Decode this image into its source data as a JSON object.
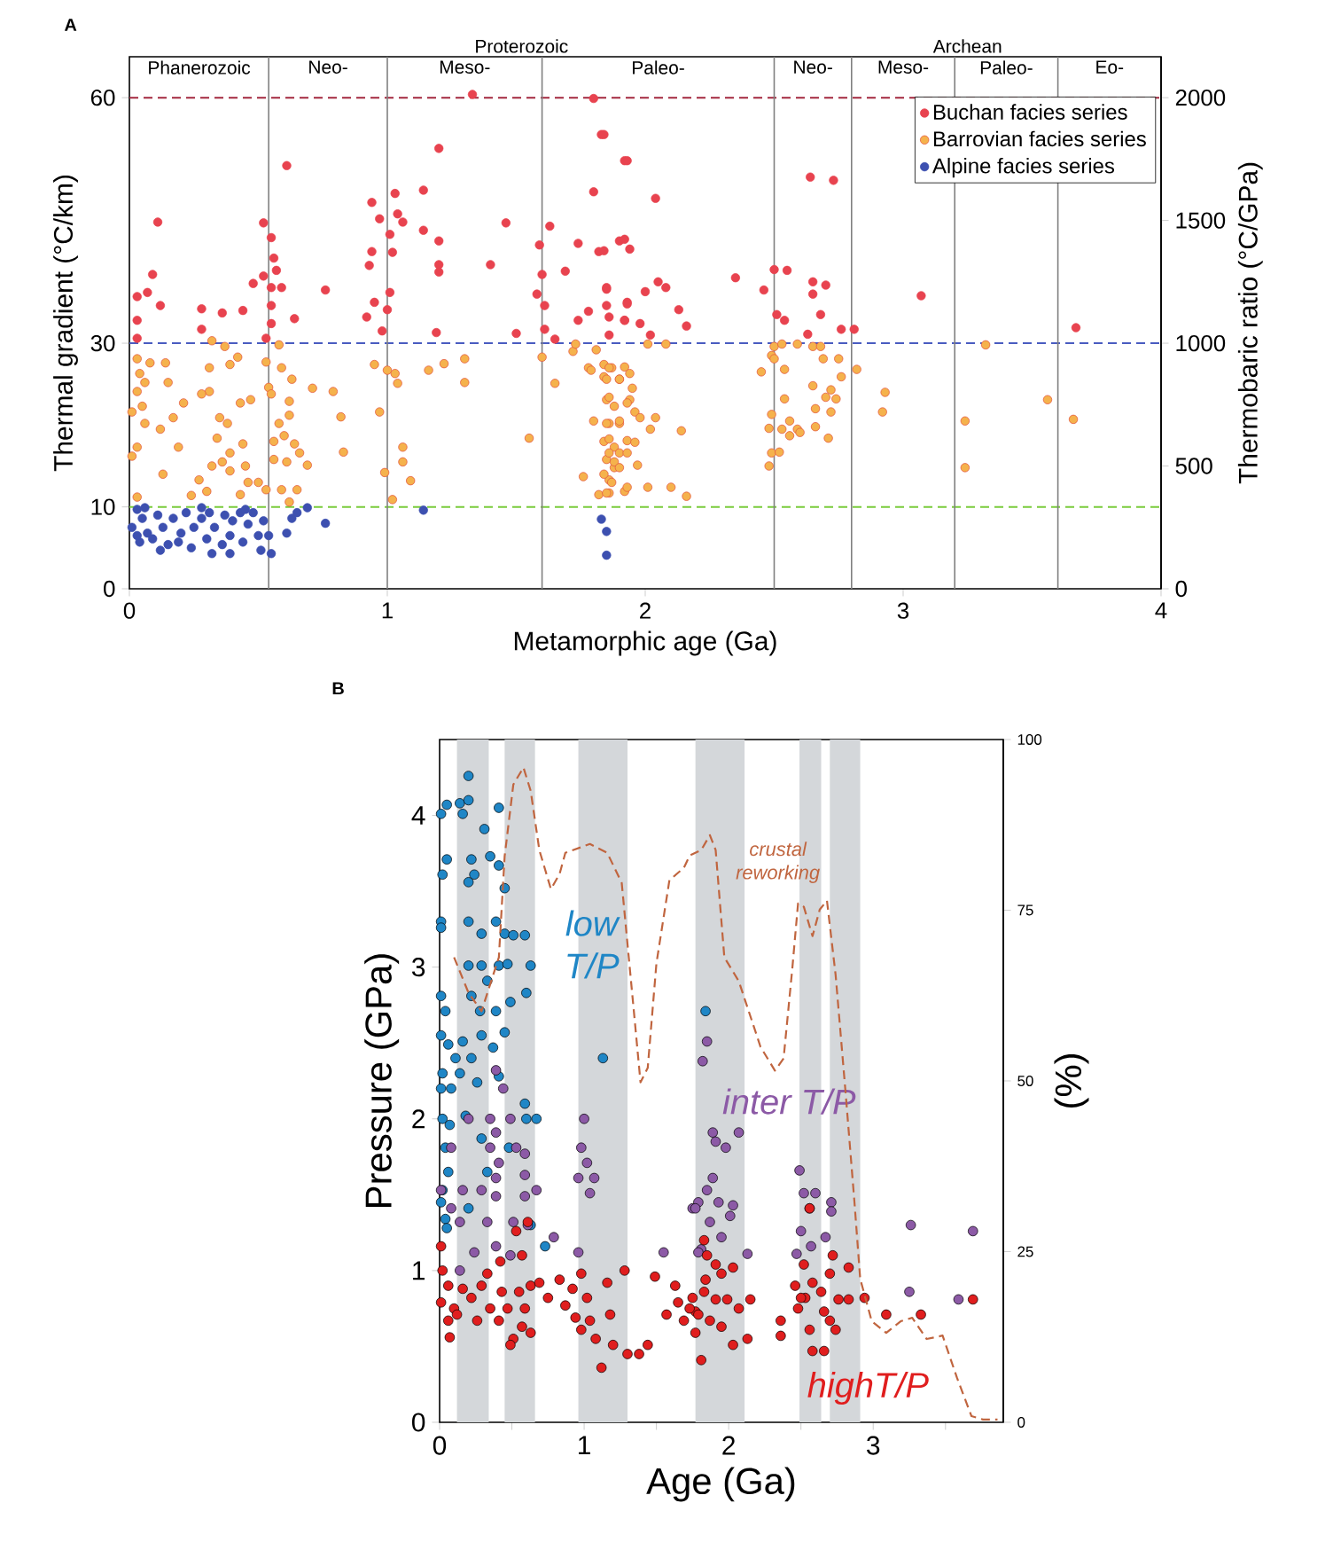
{
  "chart_data": [
    {
      "type": "scatter",
      "xlabel": "Metamorphic age (Ga)",
      "ylabel": "Thermal gradient (°C/km)",
      "y2label": "Thermobaric ratio (°C/GPa)",
      "xlim": [
        0,
        4
      ],
      "xticks": [
        0,
        1,
        2,
        3,
        4
      ],
      "ylim": [
        0,
        65
      ],
      "yticks": [
        0,
        10,
        30,
        60
      ],
      "y2lim": [
        0,
        2166.7
      ],
      "y2ticks": [
        0,
        500,
        1000,
        1500,
        2000
      ],
      "ref_lines": [
        {
          "axis": "y",
          "value": 60,
          "color": "#a3283f",
          "line_style": "dashed"
        },
        {
          "axis": "y",
          "value": 30,
          "color": "#4a5cc0",
          "line_style": "dashed"
        },
        {
          "axis": "y",
          "value": 10,
          "color": "#7acb3c",
          "line_style": "dashed"
        },
        {
          "axis": "x",
          "value": 0.54,
          "color": "#808080",
          "line_style": "solid"
        },
        {
          "axis": "x",
          "value": 1.0,
          "color": "#808080",
          "line_style": "solid"
        },
        {
          "axis": "x",
          "value": 1.6,
          "color": "#808080",
          "line_style": "solid"
        },
        {
          "axis": "x",
          "value": 2.5,
          "color": "#808080",
          "line_style": "solid"
        },
        {
          "axis": "x",
          "value": 2.8,
          "color": "#808080",
          "line_style": "solid"
        },
        {
          "axis": "x",
          "value": 3.2,
          "color": "#808080",
          "line_style": "solid"
        },
        {
          "axis": "x",
          "value": 3.6,
          "color": "#808080",
          "line_style": "solid"
        }
      ],
      "legend": "top right",
      "marker": "circle",
      "annotations": [
        "A",
        "Phanerozoic",
        "Neo-",
        "Meso-",
        "Paleo-",
        "Neo-",
        "Meso-",
        "Paleo-",
        "Eo-",
        "Proterozoic",
        "Archean"
      ],
      "series": [
        {
          "name": "Buchan facies series",
          "color": "#e8434f",
          "x": [
            0.11,
            0.03,
            0.07,
            0.09,
            0.12,
            0.03,
            0.03,
            0.28,
            0.36,
            0.44,
            0.48,
            0.28,
            0.52,
            0.55,
            0.56,
            0.57,
            0.52,
            0.55,
            0.59,
            0.55,
            0.55,
            0.53,
            0.61,
            0.64,
            0.76,
            0.94,
            0.97,
            0.94,
            0.93,
            0.92,
            0.95,
            0.98,
            1.01,
            1.03,
            1.04,
            1.06,
            1.02,
            1.01,
            1.0,
            1.14,
            1.14,
            1.2,
            1.2,
            1.2,
            1.2,
            1.19,
            1.33,
            1.4,
            1.46,
            1.5,
            1.6,
            1.59,
            1.58,
            1.61,
            1.61,
            1.63,
            1.65,
            1.69,
            1.74,
            1.8,
            1.8,
            1.83,
            1.82,
            1.85,
            1.85,
            1.74,
            1.78,
            1.9,
            1.92,
            1.93,
            1.86,
            1.92,
            1.84,
            1.93,
            2.04,
            1.92,
            1.94,
            1.84,
            1.85,
            1.93,
            2.0,
            2.05,
            2.08,
            2.13,
            2.16,
            1.86,
            1.92,
            1.98,
            2.02,
            2.35,
            2.46,
            2.5,
            2.55,
            2.64,
            2.73,
            2.65,
            2.7,
            2.65,
            2.68,
            2.51,
            2.54,
            2.63,
            2.76,
            2.81,
            3.07,
            3.67
          ],
          "values": [
            44.8,
            35.7,
            36.2,
            38.4,
            34.6,
            32.8,
            30.6,
            34.2,
            33.7,
            34.0,
            37.3,
            31.7,
            44.7,
            42.9,
            40.4,
            38.9,
            38.2,
            36.8,
            36.8,
            34.6,
            32.4,
            30.6,
            51.7,
            33.0,
            36.5,
            47.2,
            45.2,
            41.2,
            39.5,
            33.2,
            35.0,
            31.5,
            43.3,
            48.3,
            45.8,
            44.8,
            41.1,
            36.2,
            34.1,
            48.7,
            43.8,
            42.5,
            53.8,
            39.6,
            38.7,
            31.3,
            60.4,
            39.6,
            44.7,
            31.2,
            38.4,
            42.0,
            36.0,
            34.6,
            31.7,
            44.3,
            30.5,
            38.8,
            42.2,
            48.5,
            59.9,
            55.5,
            41.2,
            36.6,
            34.6,
            32.8,
            33.9,
            42.5,
            52.3,
            35.0,
            31.0,
            32.8,
            55.5,
            52.3,
            47.7,
            42.7,
            41.5,
            41.3,
            36.8,
            34.8,
            36.3,
            37.5,
            36.8,
            34.1,
            32.1,
            33.2,
            32.8,
            32.4,
            31.0,
            38.0,
            36.5,
            39.0,
            38.9,
            50.3,
            49.9,
            37.5,
            37.1,
            36.0,
            33.5,
            33.5,
            32.8,
            31.1,
            31.7,
            31.7,
            35.8,
            31.9
          ]
        },
        {
          "name": "Barrovian facies series",
          "color": "#f5b24c",
          "x": [
            0.03,
            0.08,
            0.14,
            0.04,
            0.06,
            0.03,
            0.05,
            0.01,
            0.06,
            0.03,
            0.01,
            0.15,
            0.21,
            0.12,
            0.17,
            0.19,
            0.13,
            0.03,
            0.24,
            0.27,
            0.31,
            0.31,
            0.28,
            0.37,
            0.32,
            0.39,
            0.35,
            0.34,
            0.38,
            0.43,
            0.47,
            0.42,
            0.39,
            0.36,
            0.44,
            0.45,
            0.32,
            0.39,
            0.46,
            0.5,
            0.43,
            0.3,
            0.53,
            0.58,
            0.59,
            0.54,
            0.55,
            0.63,
            0.62,
            0.62,
            0.58,
            0.6,
            0.56,
            0.64,
            0.56,
            0.61,
            0.69,
            0.66,
            0.53,
            0.59,
            0.65,
            0.62,
            0.71,
            0.79,
            0.82,
            0.83,
            0.95,
            1.0,
            1.03,
            1.04,
            0.97,
            1.06,
            1.06,
            0.99,
            1.09,
            1.02,
            1.16,
            1.22,
            1.3,
            1.3,
            1.55,
            1.6,
            1.65,
            1.72,
            1.73,
            1.78,
            1.81,
            1.79,
            1.84,
            1.87,
            1.9,
            1.85,
            1.8,
            1.86,
            1.84,
            1.9,
            1.88,
            1.85,
            1.9,
            1.76,
            1.86,
            1.88,
            1.86,
            1.92,
            1.82,
            1.94,
            1.84,
            1.86,
            1.92,
            1.94,
            1.85,
            1.9,
            1.95,
            1.86,
            1.88,
            1.93,
            1.96,
            1.98,
            1.85,
            1.9,
            2.04,
            2.02,
            2.14,
            1.86,
            1.93,
            1.96,
            1.86,
            1.93,
            1.88,
            1.97,
            1.84,
            1.9,
            1.87,
            1.93,
            1.85,
            2.01,
            2.1,
            2.16,
            2.01,
            2.08,
            2.45,
            2.49,
            2.5,
            2.53,
            2.59,
            2.65,
            2.68,
            2.69,
            2.75,
            2.5,
            2.54,
            2.82,
            2.76,
            2.54,
            2.65,
            2.72,
            2.7,
            2.74,
            2.66,
            2.72,
            2.71,
            2.49,
            2.48,
            2.53,
            2.56,
            2.59,
            2.56,
            2.6,
            2.66,
            2.49,
            2.52,
            2.48,
            2.93,
            2.92,
            3.24,
            3.24,
            3.32,
            3.56,
            3.66
          ],
          "values": [
            28.1,
            27.6,
            27.6,
            26.3,
            25.2,
            24.1,
            22.3,
            21.6,
            20.2,
            17.3,
            16.2,
            25.2,
            22.7,
            19.5,
            20.9,
            17.3,
            14.0,
            11.2,
            11.4,
            13.3,
            27.0,
            24.1,
            23.8,
            29.6,
            30.3,
            27.4,
            20.9,
            18.4,
            20.2,
            22.7,
            23.1,
            28.3,
            16.6,
            15.5,
            17.7,
            15.0,
            15.0,
            14.4,
            13.0,
            13.0,
            11.5,
            11.9,
            27.7,
            29.8,
            27.0,
            24.6,
            23.8,
            25.6,
            22.9,
            21.2,
            20.2,
            18.7,
            18.0,
            17.7,
            15.8,
            15.5,
            15.1,
            16.6,
            12.1,
            12.1,
            12.1,
            10.6,
            24.5,
            24.1,
            21.0,
            16.7,
            27.4,
            26.7,
            26.3,
            25.1,
            21.6,
            17.3,
            15.5,
            14.2,
            13.2,
            10.9,
            26.7,
            27.5,
            28.1,
            25.2,
            18.4,
            28.3,
            25.1,
            29.0,
            29.9,
            27.0,
            29.2,
            26.7,
            25.9,
            27.0,
            25.6,
            23.1,
            20.5,
            20.2,
            18.0,
            20.2,
            17.3,
            15.8,
            16.6,
            13.7,
            13.3,
            14.8,
            11.7,
            11.9,
            11.5,
            23.1,
            27.4,
            27.0,
            27.1,
            26.3,
            25.6,
            25.6,
            24.5,
            23.4,
            22.3,
            22.7,
            21.6,
            20.9,
            20.2,
            20.5,
            20.9,
            19.5,
            19.3,
            18.3,
            18.1,
            17.9,
            16.6,
            16.6,
            15.5,
            15.1,
            14.0,
            14.8,
            13.0,
            12.4,
            11.7,
            12.4,
            12.4,
            11.3,
            29.9,
            29.9,
            26.5,
            28.5,
            29.6,
            29.9,
            29.9,
            29.6,
            29.6,
            28.1,
            28.1,
            28.1,
            26.8,
            26.8,
            25.9,
            23.2,
            24.8,
            24.3,
            23.4,
            23.2,
            22.0,
            21.6,
            18.4,
            21.3,
            19.6,
            19.5,
            20.5,
            19.5,
            18.7,
            19.1,
            19.8,
            16.6,
            16.7,
            15.0,
            24.0,
            21.6,
            20.5,
            14.8,
            29.8,
            23.1,
            20.7
          ]
        },
        {
          "name": "Alpine facies series",
          "color": "#3d50b0",
          "x": [
            0.03,
            0.05,
            0.01,
            0.07,
            0.04,
            0.11,
            0.13,
            0.09,
            0.15,
            0.17,
            0.2,
            0.22,
            0.24,
            0.25,
            0.28,
            0.3,
            0.31,
            0.33,
            0.36,
            0.37,
            0.39,
            0.4,
            0.43,
            0.44,
            0.46,
            0.48,
            0.5,
            0.51,
            0.54,
            0.55,
            0.52,
            0.61,
            0.63,
            0.65,
            0.69,
            0.76,
            1.14,
            1.83,
            1.85,
            1.85,
            0.06,
            0.19,
            0.12,
            0.32,
            0.39,
            0.45,
            0.03,
            0.28
          ],
          "values": [
            9.7,
            8.6,
            7.5,
            6.8,
            5.7,
            9.0,
            7.5,
            6.1,
            5.4,
            8.6,
            6.8,
            9.3,
            5.0,
            7.5,
            8.6,
            6.1,
            9.3,
            7.5,
            5.4,
            9.0,
            6.5,
            8.3,
            9.3,
            5.7,
            7.9,
            9.3,
            6.5,
            4.7,
            6.5,
            4.3,
            8.3,
            6.8,
            8.6,
            9.3,
            9.9,
            8.0,
            9.6,
            8.5,
            7.0,
            4.1,
            9.9,
            5.7,
            4.7,
            4.3,
            4.3,
            9.7,
            6.5,
            9.9
          ]
        }
      ]
    },
    {
      "type": "scatter",
      "xlabel": "Age (Ga)",
      "ylabel": "Pressure (GPa)",
      "y2label": "(%)",
      "xlim": [
        0,
        3.9
      ],
      "xticks": [
        0,
        {
          "value": 0.5,
          "label": null
        },
        1,
        {
          "value": 1.5,
          "label": null
        },
        2,
        {
          "value": 2.5,
          "label": null
        },
        3,
        {
          "value": 3.5,
          "label": null
        }
      ],
      "ylim": [
        0,
        4.5
      ],
      "yticks": [
        0,
        1,
        2,
        3,
        4
      ],
      "y2lim": [
        0,
        100
      ],
      "y2ticks": [
        0,
        25,
        50,
        75,
        100
      ],
      "bands": [
        {
          "axis": "x",
          "from": 0.12,
          "to": 0.34,
          "color": "#d4d7da"
        },
        {
          "axis": "x",
          "from": 0.45,
          "to": 0.66,
          "color": "#d4d7da"
        },
        {
          "axis": "x",
          "from": 0.96,
          "to": 1.3,
          "color": "#d4d7da"
        },
        {
          "axis": "x",
          "from": 1.77,
          "to": 2.11,
          "color": "#d4d7da"
        },
        {
          "axis": "x",
          "from": 2.49,
          "to": 2.64,
          "color": "#d4d7da"
        },
        {
          "axis": "x",
          "from": 2.7,
          "to": 2.91,
          "color": "#d4d7da"
        }
      ],
      "marker": "circle",
      "annotations": [
        "B"
      ],
      "series": [
        {
          "name": "low T/P",
          "color": "#1f86c6",
          "x": [
            0.2,
            0.14,
            0.2,
            0.16,
            0.05,
            0.01,
            0.41,
            0.31,
            0.05,
            0.22,
            0.35,
            0.41,
            0.02,
            0.24,
            0.2,
            0.45,
            0.01,
            0.01,
            0.2,
            0.29,
            0.39,
            0.45,
            0.51,
            0.59,
            0.63,
            0.2,
            0.29,
            0.41,
            0.47,
            0.6,
            0.33,
            0.22,
            0.01,
            0.04,
            0.39,
            0.28,
            0.49,
            0.01,
            0.06,
            0.16,
            0.29,
            0.37,
            0.45,
            0.11,
            0.22,
            0.02,
            0.08,
            0.14,
            0.26,
            0.41,
            0.01,
            0.02,
            0.07,
            0.18,
            0.6,
            0.67,
            0.59,
            0.29,
            0.48,
            0.04,
            0.06,
            0.02,
            0.33,
            0.01,
            0.2,
            0.04,
            0.05,
            0.63,
            0.73,
            1.13,
            1.84
          ],
          "values": [
            4.26,
            4.08,
            4.1,
            4.01,
            4.07,
            4.01,
            4.05,
            3.91,
            3.71,
            3.71,
            3.73,
            3.67,
            3.61,
            3.61,
            3.56,
            3.52,
            3.3,
            3.26,
            3.3,
            3.22,
            3.3,
            3.22,
            3.21,
            3.21,
            3.01,
            3.01,
            3.01,
            3.01,
            3.02,
            2.83,
            2.91,
            2.81,
            2.81,
            2.71,
            2.71,
            2.71,
            2.77,
            2.55,
            2.49,
            2.51,
            2.55,
            2.47,
            2.57,
            2.4,
            2.4,
            2.3,
            2.2,
            2.3,
            2.24,
            2.28,
            2.2,
            2.0,
            1.96,
            2.02,
            2.0,
            2.0,
            2.1,
            1.87,
            1.81,
            1.81,
            1.65,
            1.53,
            1.65,
            1.45,
            1.41,
            1.34,
            1.28,
            1.3,
            1.16,
            2.4,
            2.71
          ]
        },
        {
          "name": "inter T/P",
          "color": "#8c5aa6",
          "x": [
            0.39,
            0.44,
            0.2,
            0.35,
            0.49,
            0.39,
            0.59,
            0.35,
            0.53,
            0.08,
            0.41,
            0.39,
            0.59,
            0.29,
            0.39,
            0.16,
            0.59,
            0.67,
            0.08,
            0.14,
            0.33,
            0.51,
            0.61,
            0.39,
            0.49,
            0.14,
            0.24,
            0.79,
            1.0,
            0.98,
            1.02,
            0.96,
            1.07,
            1.04,
            0.96,
            1.55,
            1.75,
            1.81,
            0.01,
            1.85,
            1.82,
            1.89,
            1.91,
            1.98,
            2.07,
            1.89,
            1.85,
            1.93,
            2.03,
            1.79,
            1.77,
            2.01,
            1.87,
            1.95,
            2.13,
            1.79,
            2.49,
            2.52,
            2.6,
            2.56,
            2.5,
            2.57,
            2.67,
            2.71,
            2.71,
            2.47,
            3.26,
            3.69,
            3.25,
            3.59
          ],
          "values": [
            2.32,
            2.2,
            2.0,
            2.0,
            2.0,
            1.91,
            1.77,
            1.81,
            1.81,
            1.81,
            1.71,
            1.61,
            1.63,
            1.53,
            1.49,
            1.53,
            1.49,
            1.53,
            1.41,
            1.32,
            1.32,
            1.32,
            1.3,
            1.16,
            1.1,
            1.0,
            1.12,
            1.22,
            2.0,
            1.81,
            1.71,
            1.61,
            1.61,
            1.51,
            1.12,
            1.12,
            1.41,
            1.14,
            1.53,
            2.51,
            2.38,
            1.91,
            1.85,
            1.81,
            1.91,
            1.61,
            1.53,
            1.45,
            1.43,
            1.45,
            1.41,
            1.36,
            1.32,
            1.22,
            1.11,
            1.12,
            1.66,
            1.51,
            1.51,
            1.41,
            1.26,
            1.16,
            1.22,
            1.45,
            1.39,
            1.11,
            1.3,
            1.26,
            0.86,
            0.81
          ]
        },
        {
          "name": "highT/P",
          "color": "#e01e1e",
          "x": [
            0.01,
            0.02,
            0.06,
            0.01,
            0.1,
            0.06,
            0.12,
            0.07,
            0.16,
            0.29,
            0.22,
            0.33,
            0.26,
            0.35,
            0.42,
            0.43,
            0.41,
            0.47,
            0.51,
            0.49,
            0.53,
            0.57,
            0.61,
            0.55,
            0.63,
            0.59,
            0.57,
            0.63,
            0.69,
            0.75,
            0.83,
            0.92,
            0.87,
            0.98,
            1.02,
            0.94,
            0.98,
            1.04,
            1.08,
            1.12,
            1.16,
            1.18,
            1.2,
            1.28,
            1.3,
            1.38,
            1.44,
            1.49,
            1.57,
            1.63,
            1.65,
            1.69,
            1.75,
            1.77,
            1.84,
            1.83,
            1.85,
            1.91,
            1.95,
            2.03,
            1.83,
            1.91,
            1.99,
            2.07,
            2.15,
            1.79,
            1.87,
            1.95,
            2.03,
            2.13,
            1.81,
            1.77,
            1.73,
            2.36,
            2.36,
            2.46,
            2.48,
            2.52,
            2.53,
            2.58,
            2.56,
            2.64,
            2.66,
            2.72,
            2.7,
            2.76,
            2.83,
            2.83,
            2.56,
            2.66,
            2.74,
            2.58,
            2.7,
            2.94,
            3.09,
            3.33,
            3.69,
            2.5
          ],
          "values": [
            1.16,
            1.0,
            0.9,
            0.79,
            0.75,
            0.67,
            0.71,
            0.56,
            0.88,
            0.9,
            0.82,
            0.98,
            0.67,
            0.75,
            1.06,
            0.86,
            0.67,
            0.75,
            0.55,
            0.51,
            1.26,
            1.1,
            1.32,
            0.86,
            0.9,
            0.75,
            0.63,
            0.59,
            0.92,
            0.82,
            0.94,
            0.88,
            0.77,
            0.98,
            0.82,
            0.69,
            0.61,
            0.67,
            0.55,
            0.36,
            0.92,
            0.71,
            0.51,
            1.0,
            0.45,
            0.45,
            0.51,
            0.96,
            0.71,
            0.9,
            0.79,
            0.67,
            0.82,
            0.73,
            0.94,
            1.2,
            1.1,
            1.04,
            0.98,
            1.02,
            0.86,
            0.81,
            0.81,
            0.75,
            0.81,
            0.71,
            0.67,
            0.63,
            0.51,
            0.55,
            0.41,
            0.59,
            0.75,
            0.67,
            0.57,
            0.9,
            0.75,
            1.04,
            0.82,
            0.92,
            1.41,
            0.86,
            0.73,
            1.1,
            0.98,
            0.81,
            1.02,
            0.81,
            0.61,
            0.47,
            0.61,
            0.47,
            0.67,
            0.82,
            0.71,
            0.71,
            0.81,
            0.82
          ]
        },
        {
          "name": "crustal reworking",
          "type": "line",
          "axis": "y2",
          "color": "#c0653f",
          "line_style": "dashed",
          "marker": "none",
          "x": [
            0.1,
            0.2,
            0.29,
            0.41,
            0.45,
            0.51,
            0.58,
            0.63,
            0.69,
            0.77,
            0.83,
            0.87,
            1.04,
            1.16,
            1.26,
            1.34,
            1.39,
            1.44,
            1.5,
            1.59,
            1.69,
            1.73,
            1.81,
            1.87,
            1.91,
            1.97,
            2.07,
            2.22,
            2.32,
            2.38,
            2.44,
            2.48,
            2.52,
            2.58,
            2.63,
            2.68,
            2.74,
            2.81,
            2.87,
            2.91,
            2.99,
            3.09,
            3.19,
            3.27,
            3.37,
            3.48,
            3.58,
            3.68,
            3.76,
            3.86
          ],
          "values": [
            68.1,
            62.9,
            60.2,
            68.1,
            82.9,
            93.4,
            95.9,
            92.5,
            83.8,
            78.1,
            80.3,
            83.4,
            84.7,
            83.4,
            79.0,
            61.1,
            49.8,
            51.9,
            67.2,
            79.4,
            81.2,
            83.0,
            83.8,
            86.0,
            83.8,
            68.1,
            64.6,
            55.0,
            51.5,
            53.3,
            66.4,
            76.0,
            75.5,
            71.2,
            75.1,
            76.4,
            65.5,
            48.0,
            32.3,
            21.0,
            14.8,
            13.1,
            14.8,
            15.3,
            12.2,
            12.7,
            6.5,
            0.9,
            0.4,
            0.4
          ]
        }
      ]
    }
  ]
}
